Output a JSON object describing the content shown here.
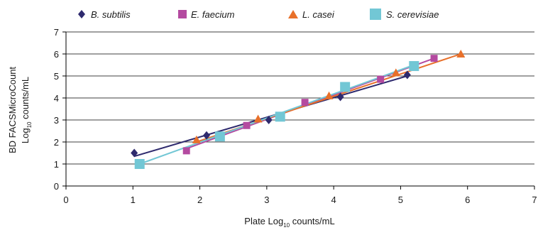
{
  "chart_data": {
    "type": "scatter",
    "title": "",
    "xlabel": {
      "prefix": "Plate Log",
      "sub": "10",
      "suffix": " counts/mL"
    },
    "ylabel": {
      "line1": "BD FACSMicroCount",
      "line2_prefix": "Log",
      "line2_sub": "10",
      "line2_suffix": " counts/mL"
    },
    "xlim": [
      0,
      7
    ],
    "ylim": [
      0,
      7
    ],
    "x_ticks": [
      0,
      1,
      2,
      3,
      4,
      5,
      6,
      7
    ],
    "y_ticks": [
      0,
      1,
      2,
      3,
      4,
      5,
      6,
      7
    ],
    "grid": "horizontal",
    "legend": "top",
    "series": [
      {
        "name": "B. subtilis",
        "marker": "diamond",
        "color": "#2e2a6e",
        "points": [
          [
            1.02,
            1.5
          ],
          [
            2.1,
            2.3
          ],
          [
            3.03,
            3.0
          ],
          [
            4.1,
            4.05
          ],
          [
            5.1,
            5.05
          ]
        ],
        "trendline": [
          [
            1.02,
            1.35
          ],
          [
            5.1,
            5.0
          ]
        ]
      },
      {
        "name": "E. faecium",
        "marker": "square",
        "color": "#b44aa0",
        "points": [
          [
            1.8,
            1.6
          ],
          [
            2.7,
            2.75
          ],
          [
            3.57,
            3.8
          ],
          [
            4.7,
            4.85
          ],
          [
            5.5,
            5.8
          ]
        ],
        "trendline": [
          [
            1.8,
            1.7
          ],
          [
            5.5,
            5.8
          ]
        ]
      },
      {
        "name": "L. casei",
        "marker": "triangle",
        "color": "#e8702a",
        "points": [
          [
            1.95,
            2.1
          ],
          [
            2.87,
            3.05
          ],
          [
            3.93,
            4.1
          ],
          [
            4.93,
            5.15
          ],
          [
            5.9,
            6.0
          ]
        ],
        "trendline": [
          [
            1.95,
            2.0
          ],
          [
            5.9,
            6.0
          ]
        ]
      },
      {
        "name": "S. cerevisiae",
        "marker": "square",
        "color": "#72c7d5",
        "points": [
          [
            1.1,
            1.0
          ],
          [
            2.3,
            2.25
          ],
          [
            3.2,
            3.15
          ],
          [
            4.17,
            4.5
          ],
          [
            5.2,
            5.45
          ]
        ],
        "trendline": [
          [
            1.1,
            1.0
          ],
          [
            5.2,
            5.5
          ]
        ]
      }
    ]
  }
}
